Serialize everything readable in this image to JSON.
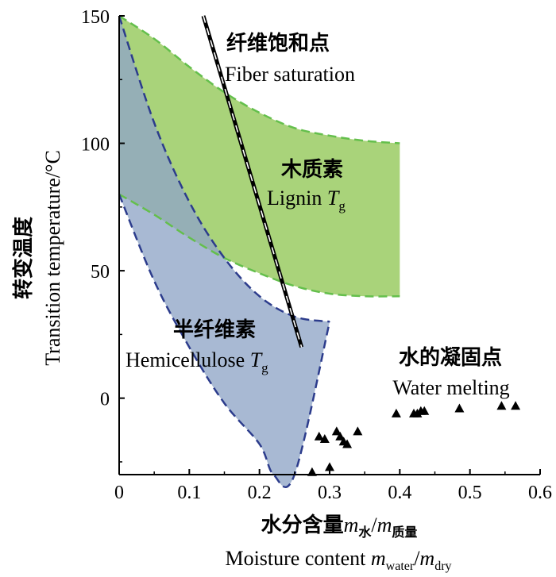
{
  "chart_data": {
    "type": "area",
    "title": "",
    "xlabel_cn": "水分含量",
    "xlabel_cn_sym": "m",
    "xlabel_cn_sub1": "水",
    "xlabel_cn_slash": "/",
    "xlabel_cn_sub2": "质量",
    "xlabel_en_pre": "Moisture content ",
    "xlabel_en_m1": "m",
    "xlabel_en_sub1": "water",
    "xlabel_en_slash": "/",
    "xlabel_en_m2": "m",
    "xlabel_en_sub2": "dry",
    "ylabel_cn": "转变温度",
    "ylabel_en": "Transition temperature/°C",
    "xlim": [
      0,
      0.6
    ],
    "ylim": [
      -30,
      150
    ],
    "xticks": [
      0,
      0.1,
      0.2,
      0.3,
      0.4,
      0.5,
      0.6
    ],
    "xtick_labels": [
      "0",
      "0.1",
      "0.2",
      "0.3",
      "0.4",
      "0.5",
      "0.6"
    ],
    "yticks": [
      0,
      50,
      100,
      150
    ],
    "ytick_labels": [
      "0",
      "50",
      "100",
      "150"
    ],
    "series": [
      {
        "name": "Lignin Tg",
        "label_cn": "木质素",
        "label_en": "Lignin ",
        "label_sym": "T",
        "label_sub": "g",
        "fill": "#a9d37a",
        "stroke": "#64bf4c",
        "upper": [
          [
            0.0,
            150
          ],
          [
            0.05,
            141
          ],
          [
            0.1,
            130
          ],
          [
            0.15,
            120
          ],
          [
            0.2,
            112
          ],
          [
            0.25,
            106
          ],
          [
            0.3,
            103
          ],
          [
            0.35,
            101
          ],
          [
            0.4,
            100
          ]
        ],
        "lower": [
          [
            0.0,
            80
          ],
          [
            0.05,
            72
          ],
          [
            0.1,
            63
          ],
          [
            0.15,
            55
          ],
          [
            0.2,
            49
          ],
          [
            0.25,
            44
          ],
          [
            0.3,
            41
          ],
          [
            0.35,
            40
          ],
          [
            0.4,
            40
          ]
        ]
      },
      {
        "name": "Hemicellulose Tg",
        "label_cn": "半纤维素",
        "label_en": "Hemicellulose ",
        "label_sym": "T",
        "label_sub": "g",
        "fill": "#8fa5c6",
        "stroke": "#2c3c8c",
        "upper": [
          [
            0.0,
            150
          ],
          [
            0.05,
            108
          ],
          [
            0.1,
            77
          ],
          [
            0.15,
            55
          ],
          [
            0.2,
            40
          ],
          [
            0.25,
            32
          ],
          [
            0.3,
            30
          ]
        ],
        "lower": [
          [
            0.0,
            80
          ],
          [
            0.05,
            46
          ],
          [
            0.1,
            20
          ],
          [
            0.15,
            -2
          ],
          [
            0.2,
            -18
          ],
          [
            0.22,
            -30
          ],
          [
            0.25,
            -30
          ],
          [
            0.3,
            30
          ]
        ]
      }
    ],
    "fiber_saturation": {
      "label_cn": "纤维饱和点",
      "label_en": "Fiber saturation",
      "band": [
        [
          0.12,
          150
        ],
        [
          0.26,
          20
        ]
      ]
    },
    "water_melting": {
      "label_cn": "水的凝固点",
      "label_en": "Water melting",
      "points": [
        [
          0.275,
          -29
        ],
        [
          0.285,
          -15
        ],
        [
          0.293,
          -16
        ],
        [
          0.3,
          -27
        ],
        [
          0.31,
          -13
        ],
        [
          0.315,
          -15
        ],
        [
          0.32,
          -17
        ],
        [
          0.325,
          -18
        ],
        [
          0.34,
          -13
        ],
        [
          0.395,
          -6
        ],
        [
          0.42,
          -6
        ],
        [
          0.425,
          -6
        ],
        [
          0.43,
          -5
        ],
        [
          0.435,
          -5
        ],
        [
          0.485,
          -4
        ],
        [
          0.545,
          -3
        ],
        [
          0.565,
          -3
        ]
      ]
    }
  }
}
